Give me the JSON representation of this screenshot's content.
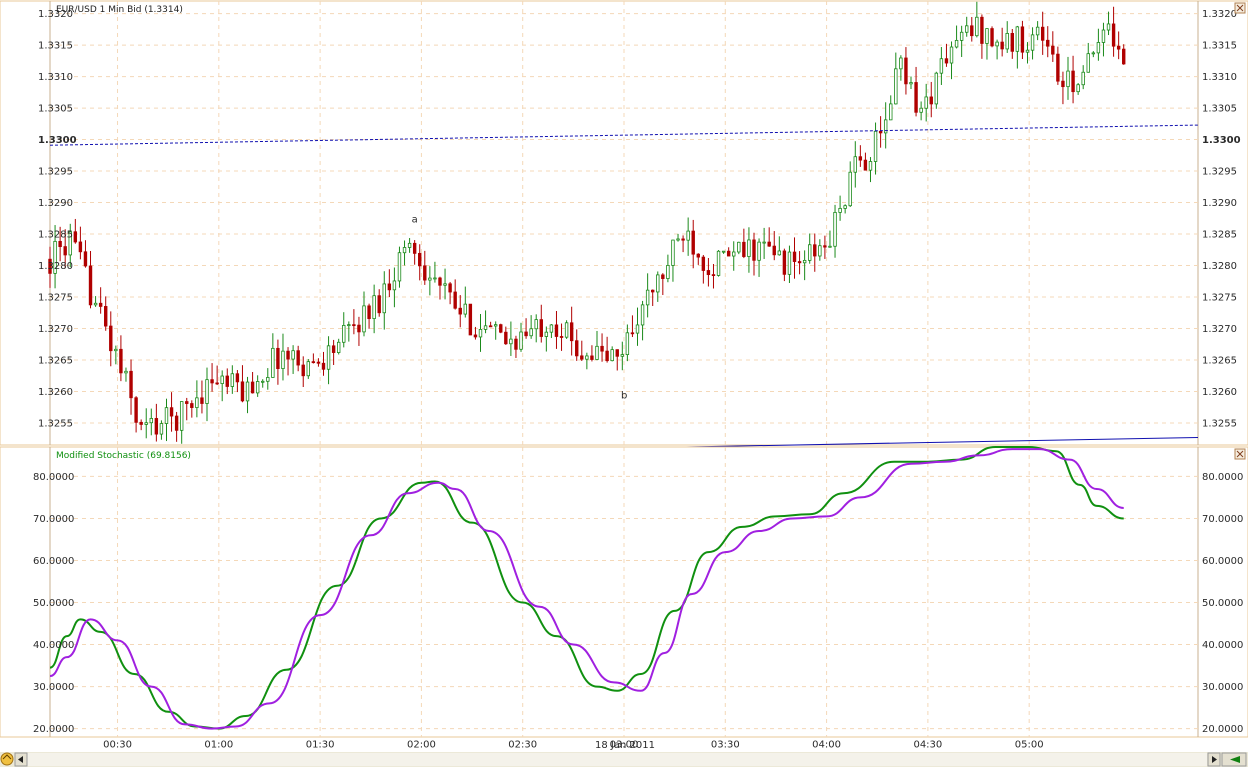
{
  "price_panel": {
    "title": "EUR/USD 1 Min Bid (1.3314)",
    "y_ticks": [
      "1.3255",
      "1.3260",
      "1.3265",
      "1.3270",
      "1.3275",
      "1.3280",
      "1.3285",
      "1.3290",
      "1.3295",
      "1.3300",
      "1.3305",
      "1.3310",
      "1.3315",
      "1.3320"
    ],
    "annotations": [
      {
        "text": "a"
      },
      {
        "text": "b"
      }
    ]
  },
  "stoch_panel": {
    "title": "Modified Stochastic (69.8156)",
    "y_ticks": [
      "20.0000",
      "30.0000",
      "40.0000",
      "50.0000",
      "60.0000",
      "70.0000",
      "80.0000"
    ]
  },
  "x_axis": {
    "ticks": [
      "00:30",
      "01:00",
      "01:30",
      "02:00",
      "02:30",
      "03:00",
      "03:30",
      "04:00",
      "04:30",
      "05:00"
    ],
    "date_label": "18 Jan 2011"
  },
  "colors": {
    "bull": "#1a8a1a",
    "bear": "#b00000",
    "stoch_k": "#109010",
    "stoch_d": "#a020e0",
    "level_line": "#1010b0",
    "grid": "#f4d8b8",
    "panel_border": "#e8c89a"
  },
  "chart_data": [
    {
      "type": "candlestick",
      "title": "EUR/USD 1 Min Bid (1.3314)",
      "x_range": [
        "00:10",
        "05:50"
      ],
      "ylim": [
        1.32515,
        1.3322
      ],
      "grid": true,
      "key_points": [
        {
          "time": "00:10",
          "price": 1.3281
        },
        {
          "time": "00:16",
          "price": 1.3284
        },
        {
          "time": "00:25",
          "price": 1.3272
        },
        {
          "time": "00:32",
          "price": 1.3262
        },
        {
          "time": "00:37",
          "price": 1.3254
        },
        {
          "time": "00:48",
          "price": 1.3256
        },
        {
          "time": "00:58",
          "price": 1.3262
        },
        {
          "time": "01:08",
          "price": 1.326
        },
        {
          "time": "01:18",
          "price": 1.3266
        },
        {
          "time": "01:28",
          "price": 1.3264
        },
        {
          "time": "01:36",
          "price": 1.3268
        },
        {
          "time": "01:48",
          "price": 1.3275
        },
        {
          "time": "01:56",
          "price": 1.3284
        },
        {
          "time": "02:02",
          "price": 1.3279
        },
        {
          "time": "02:12",
          "price": 1.3272
        },
        {
          "time": "02:24",
          "price": 1.3268
        },
        {
          "time": "02:32",
          "price": 1.3269
        },
        {
          "time": "02:38",
          "price": 1.3272
        },
        {
          "time": "02:46",
          "price": 1.3267
        },
        {
          "time": "02:58",
          "price": 1.3265
        },
        {
          "time": "03:04",
          "price": 1.3272
        },
        {
          "time": "03:12",
          "price": 1.3279
        },
        {
          "time": "03:18",
          "price": 1.3286
        },
        {
          "time": "03:25",
          "price": 1.328
        },
        {
          "time": "03:40",
          "price": 1.3283
        },
        {
          "time": "03:50",
          "price": 1.328
        },
        {
          "time": "04:00",
          "price": 1.3283
        },
        {
          "time": "04:08",
          "price": 1.3295
        },
        {
          "time": "04:16",
          "price": 1.33
        },
        {
          "time": "04:22",
          "price": 1.3313
        },
        {
          "time": "04:28",
          "price": 1.3304
        },
        {
          "time": "04:36",
          "price": 1.3314
        },
        {
          "time": "04:44",
          "price": 1.3318
        },
        {
          "time": "04:52",
          "price": 1.3315
        },
        {
          "time": "05:04",
          "price": 1.3317
        },
        {
          "time": "05:10",
          "price": 1.3308
        },
        {
          "time": "05:18",
          "price": 1.3312
        },
        {
          "time": "05:24",
          "price": 1.3318
        },
        {
          "time": "05:28",
          "price": 1.3314
        }
      ],
      "levels": [
        {
          "style": "dotted",
          "start": {
            "time": "00:10",
            "price": 1.32991
          },
          "end": {
            "time": "05:50",
            "price": 1.33023
          }
        },
        {
          "style": "solid",
          "start": {
            "time": "00:10",
            "price": 1.32493
          },
          "end": {
            "time": "05:50",
            "price": 1.32527
          }
        }
      ],
      "annotations": [
        {
          "text": "a",
          "time": "01:58",
          "price": 1.32875
        },
        {
          "text": "b",
          "time": "03:00",
          "price": 1.32595
        }
      ]
    },
    {
      "type": "line",
      "title": "Modified Stochastic (69.8156)",
      "ylim": [
        18,
        87
      ],
      "grid": true,
      "series": [
        {
          "values": [
            {
              "time": "00:10",
              "value": 34.5
            },
            {
              "time": "00:15",
              "value": 42
            },
            {
              "time": "00:19",
              "value": 46
            },
            {
              "time": "00:25",
              "value": 43
            },
            {
              "time": "00:35",
              "value": 33
            },
            {
              "time": "00:45",
              "value": 24
            },
            {
              "time": "00:53",
              "value": 20.5
            },
            {
              "time": "01:00",
              "value": 20
            },
            {
              "time": "01:08",
              "value": 23
            },
            {
              "time": "01:20",
              "value": 34
            },
            {
              "time": "01:35",
              "value": 54
            },
            {
              "time": "01:48",
              "value": 70
            },
            {
              "time": "02:00",
              "value": 78.5
            },
            {
              "time": "02:04",
              "value": 78.8
            },
            {
              "time": "02:15",
              "value": 69
            },
            {
              "time": "02:30",
              "value": 50
            },
            {
              "time": "02:40",
              "value": 42
            },
            {
              "time": "02:52",
              "value": 30
            },
            {
              "time": "02:58",
              "value": 29
            },
            {
              "time": "03:05",
              "value": 33
            },
            {
              "time": "03:15",
              "value": 48
            },
            {
              "time": "03:25",
              "value": 62
            },
            {
              "time": "03:35",
              "value": 68
            },
            {
              "time": "03:45",
              "value": 70.5
            },
            {
              "time": "03:55",
              "value": 71
            },
            {
              "time": "04:05",
              "value": 76
            },
            {
              "time": "04:20",
              "value": 83.5
            },
            {
              "time": "04:30",
              "value": 83.5
            },
            {
              "time": "04:40",
              "value": 84
            },
            {
              "time": "04:50",
              "value": 87
            },
            {
              "time": "05:00",
              "value": 87
            },
            {
              "time": "05:08",
              "value": 86
            },
            {
              "time": "05:15",
              "value": 78
            },
            {
              "time": "05:20",
              "value": 73
            },
            {
              "time": "05:28",
              "value": 70
            }
          ]
        },
        {
          "values": [
            {
              "time": "00:10",
              "value": 32.5
            },
            {
              "time": "00:15",
              "value": 37
            },
            {
              "time": "00:22",
              "value": 46
            },
            {
              "time": "00:30",
              "value": 41
            },
            {
              "time": "00:40",
              "value": 30
            },
            {
              "time": "00:50",
              "value": 21
            },
            {
              "time": "00:58",
              "value": 20
            },
            {
              "time": "01:05",
              "value": 20.5
            },
            {
              "time": "01:15",
              "value": 26
            },
            {
              "time": "01:30",
              "value": 47
            },
            {
              "time": "01:45",
              "value": 66
            },
            {
              "time": "01:56",
              "value": 76
            },
            {
              "time": "02:05",
              "value": 78.5
            },
            {
              "time": "02:10",
              "value": 77
            },
            {
              "time": "02:20",
              "value": 67
            },
            {
              "time": "02:35",
              "value": 49
            },
            {
              "time": "02:45",
              "value": 40
            },
            {
              "time": "02:57",
              "value": 31
            },
            {
              "time": "03:05",
              "value": 29
            },
            {
              "time": "03:12",
              "value": 38
            },
            {
              "time": "03:20",
              "value": 52
            },
            {
              "time": "03:30",
              "value": 62
            },
            {
              "time": "03:40",
              "value": 67
            },
            {
              "time": "03:50",
              "value": 70
            },
            {
              "time": "04:00",
              "value": 70.5
            },
            {
              "time": "04:10",
              "value": 75
            },
            {
              "time": "04:25",
              "value": 83
            },
            {
              "time": "04:35",
              "value": 83.5
            },
            {
              "time": "04:45",
              "value": 85
            },
            {
              "time": "04:55",
              "value": 86.5
            },
            {
              "time": "05:03",
              "value": 86.5
            },
            {
              "time": "05:12",
              "value": 84
            },
            {
              "time": "05:20",
              "value": 77
            },
            {
              "time": "05:28",
              "value": 72.5
            }
          ]
        }
      ]
    }
  ]
}
